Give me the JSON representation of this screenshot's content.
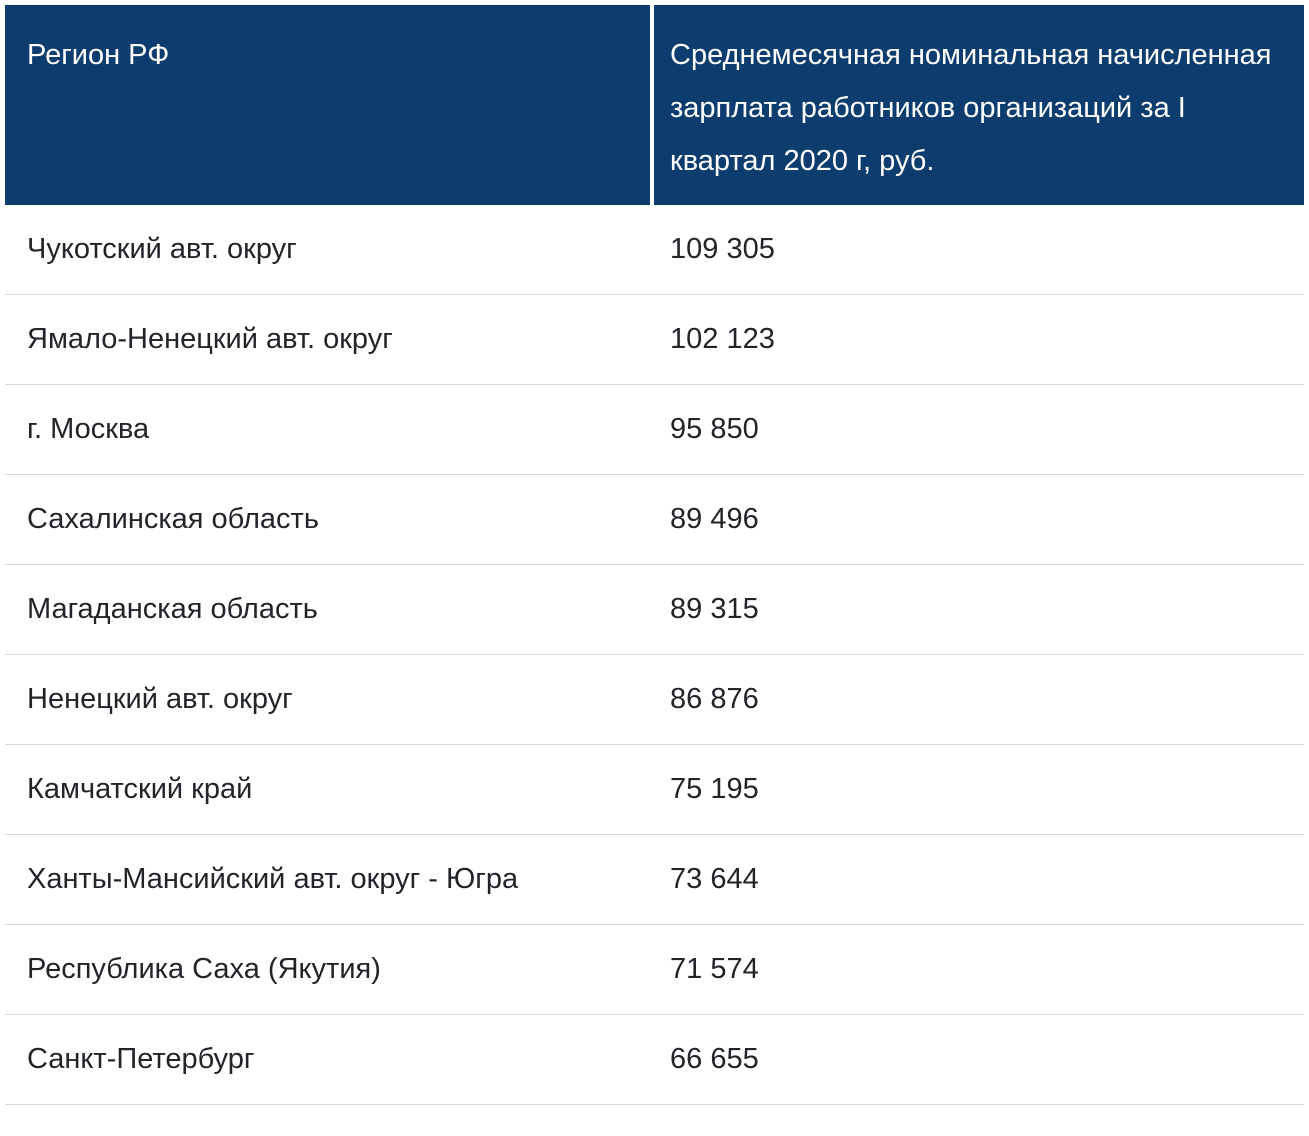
{
  "table": {
    "header": {
      "region_label": "Регион РФ",
      "salary_label": "Среднемесячная номинальная начисленная зарплата работников организаций за I квартал 2020 г, руб."
    },
    "rows": [
      {
        "region": "Чукотский авт. округ",
        "salary": "109 305"
      },
      {
        "region": "Ямало-Ненецкий авт. округ",
        "salary": "102 123"
      },
      {
        "region": "г. Москва",
        "salary": "95 850"
      },
      {
        "region": "Сахалинская область",
        "salary": "89 496"
      },
      {
        "region": "Магаданская область",
        "salary": "89 315"
      },
      {
        "region": "Ненецкий авт. округ",
        "salary": "86 876"
      },
      {
        "region": "Камчатский край",
        "salary": "75 195"
      },
      {
        "region": "Ханты-Мансийский авт. округ - Югра",
        "salary": "73 644"
      },
      {
        "region": "Республика Саха (Якутия)",
        "salary": "71 574"
      },
      {
        "region": "Санкт-Петербург",
        "salary": "66 655"
      }
    ]
  },
  "colors": {
    "header_bg": "#0d3d6e",
    "header_text": "#ffffff",
    "body_text": "#212529",
    "row_border": "#d9d9d9"
  },
  "chart_data": {
    "type": "table",
    "title": "Среднемесячная номинальная начисленная зарплата работников организаций за I квартал 2020 г, руб.",
    "columns": [
      "Регион РФ",
      "Среднемесячная номинальная начисленная зарплата работников организаций за I квартал 2020 г, руб."
    ],
    "categories": [
      "Чукотский авт. округ",
      "Ямало-Ненецкий авт. округ",
      "г. Москва",
      "Сахалинская область",
      "Магаданская область",
      "Ненецкий авт. округ",
      "Камчатский край",
      "Ханты-Мансийский авт. округ - Югра",
      "Республика Саха (Якутия)",
      "Санкт-Петербург"
    ],
    "values": [
      109305,
      102123,
      95850,
      89496,
      89315,
      86876,
      75195,
      73644,
      71574,
      66655
    ]
  }
}
